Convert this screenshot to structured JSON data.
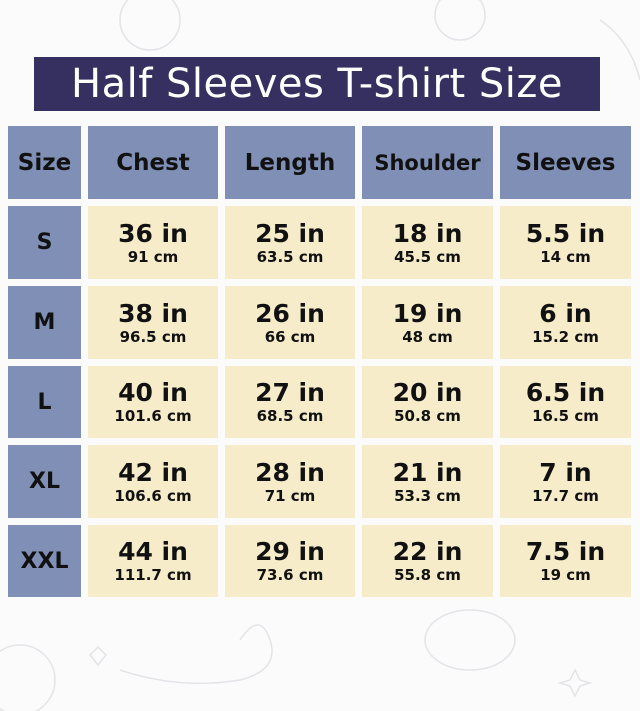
{
  "title": "Half Sleeves T-shirt Size",
  "colors": {
    "title_bg": "#35305f",
    "header_bg": "#7f8fb5",
    "cell_bg": "#f6ecca",
    "text": "#111111"
  },
  "headers": [
    "Size",
    "Chest",
    "Length",
    "Shoulder",
    "Sleeves"
  ],
  "rows": [
    {
      "size": "S",
      "cells": [
        {
          "in": "36 in",
          "cm": "91 cm"
        },
        {
          "in": "25 in",
          "cm": "63.5 cm"
        },
        {
          "in": "18 in",
          "cm": "45.5 cm"
        },
        {
          "in": "5.5 in",
          "cm": "14 cm"
        }
      ]
    },
    {
      "size": "M",
      "cells": [
        {
          "in": "38 in",
          "cm": "96.5 cm"
        },
        {
          "in": "26 in",
          "cm": "66 cm"
        },
        {
          "in": "19 in",
          "cm": "48 cm"
        },
        {
          "in": "6 in",
          "cm": "15.2 cm"
        }
      ]
    },
    {
      "size": "L",
      "cells": [
        {
          "in": "40 in",
          "cm": "101.6 cm"
        },
        {
          "in": "27 in",
          "cm": "68.5 cm"
        },
        {
          "in": "20 in",
          "cm": "50.8 cm"
        },
        {
          "in": "6.5 in",
          "cm": "16.5 cm"
        }
      ]
    },
    {
      "size": "XL",
      "cells": [
        {
          "in": "42 in",
          "cm": "106.6 cm"
        },
        {
          "in": "28 in",
          "cm": "71 cm"
        },
        {
          "in": "21 in",
          "cm": "53.3 cm"
        },
        {
          "in": "7 in",
          "cm": "17.7 cm"
        }
      ]
    },
    {
      "size": "XXL",
      "cells": [
        {
          "in": "44 in",
          "cm": "111.7 cm"
        },
        {
          "in": "29 in",
          "cm": "73.6 cm"
        },
        {
          "in": "22 in",
          "cm": "55.8 cm"
        },
        {
          "in": "7.5 in",
          "cm": "19 cm"
        }
      ]
    }
  ]
}
